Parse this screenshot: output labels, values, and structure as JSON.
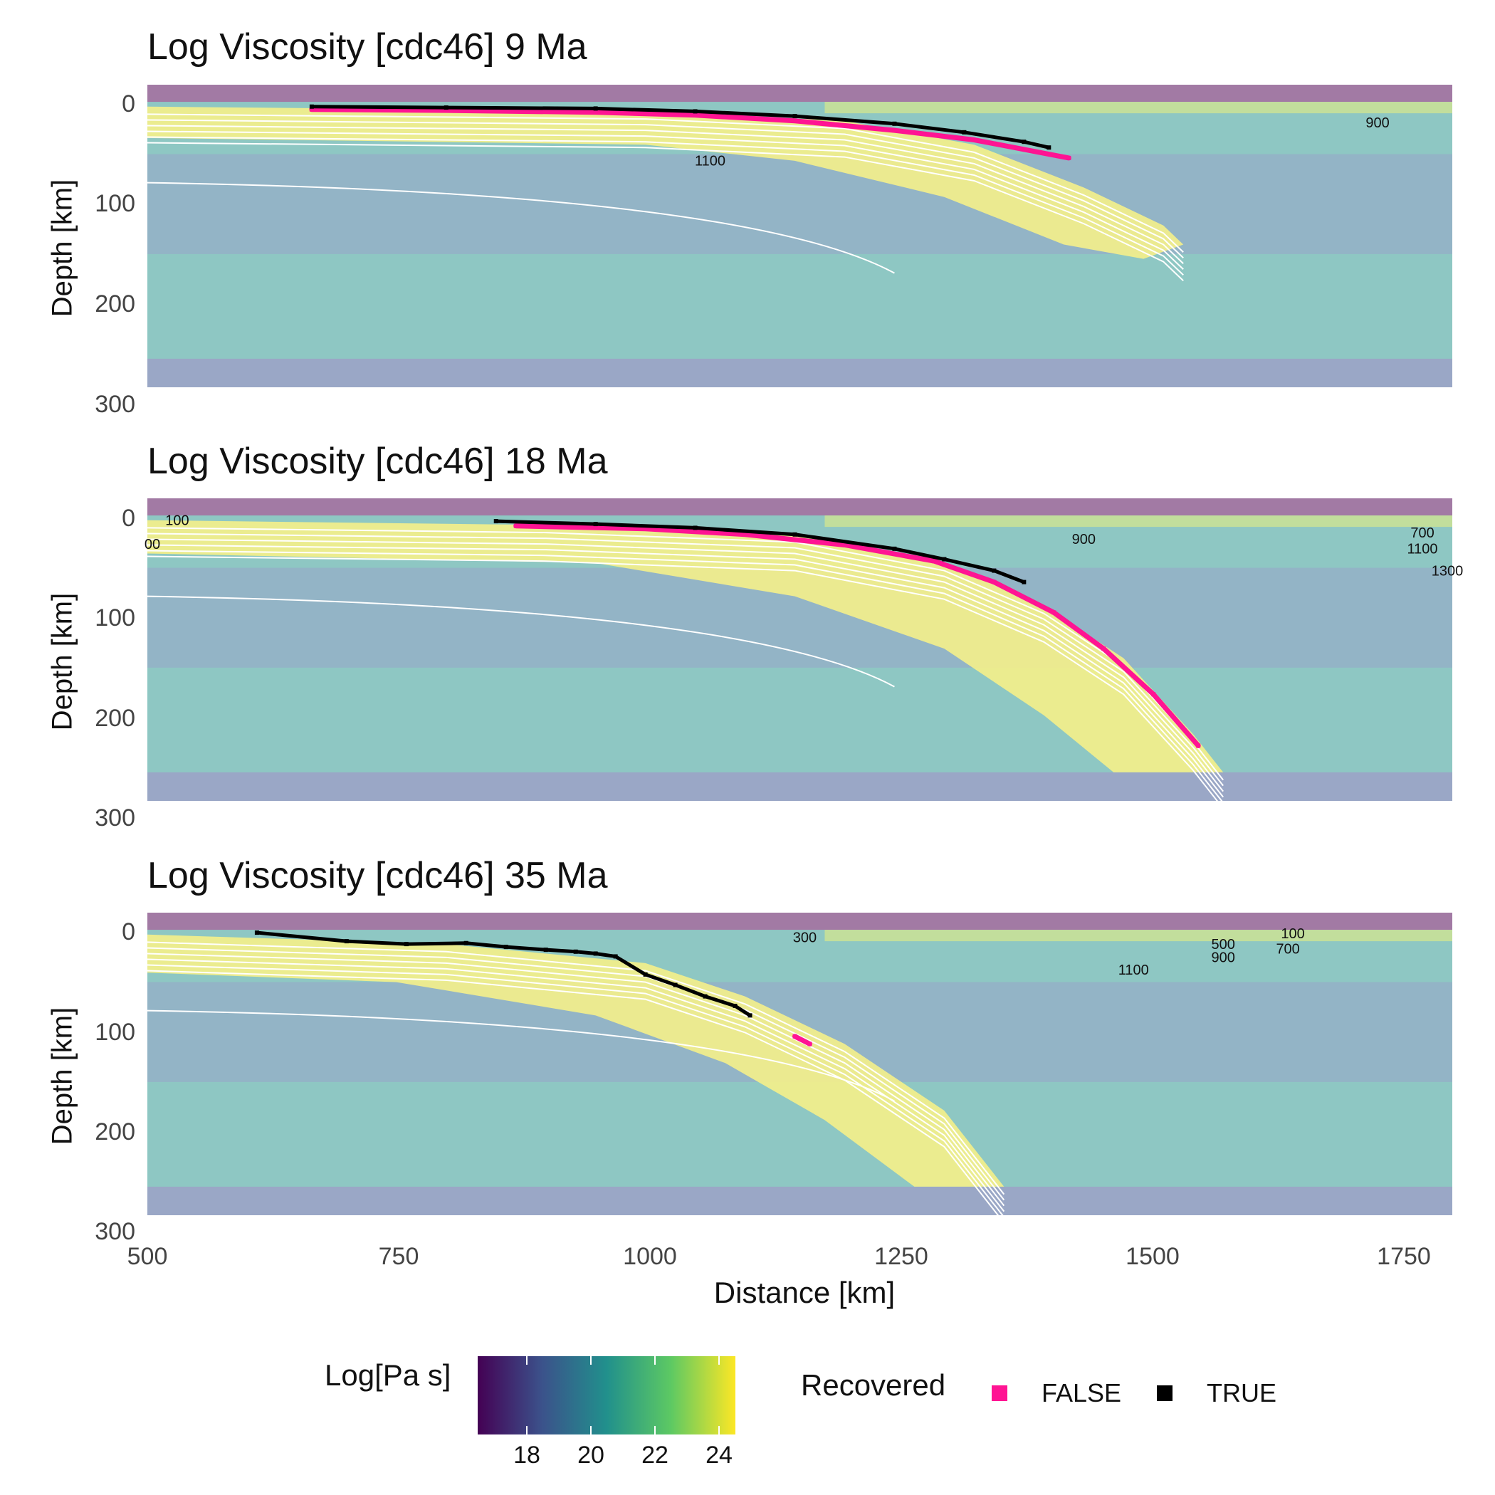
{
  "chart_data": [
    {
      "type": "heatmap",
      "title": "Log Viscosity [cdc46] 9 Ma",
      "xlabel": "",
      "ylabel": "Depth [km]",
      "xlim": [
        500,
        1810
      ],
      "ylim": [
        300,
        -18
      ],
      "yticks": [
        "0",
        "100",
        "200",
        "300"
      ],
      "xticks": [],
      "contour_labels": [
        {
          "text": "1100",
          "x": 1065,
          "y": 67
        },
        {
          "text": "900",
          "x": 1735,
          "y": 27
        }
      ],
      "recovered": {
        "FALSE": [
          [
            665,
            8
          ],
          [
            800,
            9
          ],
          [
            950,
            11
          ],
          [
            1050,
            14
          ],
          [
            1150,
            20
          ],
          [
            1250,
            30
          ],
          [
            1330,
            40
          ],
          [
            1390,
            52
          ],
          [
            1425,
            59
          ]
        ],
        "TRUE": [
          [
            665,
            5
          ],
          [
            800,
            6
          ],
          [
            950,
            7
          ],
          [
            1050,
            10
          ],
          [
            1150,
            15
          ],
          [
            1250,
            23
          ],
          [
            1320,
            32
          ],
          [
            1380,
            42
          ],
          [
            1405,
            48
          ]
        ]
      }
    },
    {
      "type": "heatmap",
      "title": "Log Viscosity [cdc46] 18 Ma",
      "xlabel": "",
      "ylabel": "Depth [km]",
      "xlim": [
        500,
        1810
      ],
      "ylim": [
        300,
        -18
      ],
      "yticks": [
        "0",
        "100",
        "200",
        "300"
      ],
      "xticks": [],
      "contour_labels": [
        {
          "text": "100",
          "x": 530,
          "y": 10
        },
        {
          "text": "00",
          "x": 505,
          "y": 35
        },
        {
          "text": "900",
          "x": 1440,
          "y": 30
        },
        {
          "text": "700",
          "x": 1780,
          "y": 23
        },
        {
          "text": "1100",
          "x": 1780,
          "y": 40
        },
        {
          "text": "1300",
          "x": 1805,
          "y": 63
        }
      ],
      "recovered": {
        "FALSE": [
          [
            870,
            11
          ],
          [
            1000,
            14
          ],
          [
            1100,
            20
          ],
          [
            1200,
            31
          ],
          [
            1290,
            48
          ],
          [
            1350,
            70
          ],
          [
            1410,
            102
          ],
          [
            1460,
            140
          ],
          [
            1510,
            188
          ],
          [
            1555,
            242
          ]
        ],
        "TRUE": [
          [
            850,
            6
          ],
          [
            950,
            9
          ],
          [
            1050,
            13
          ],
          [
            1150,
            20
          ],
          [
            1250,
            35
          ],
          [
            1300,
            46
          ],
          [
            1350,
            58
          ],
          [
            1380,
            70
          ]
        ]
      }
    },
    {
      "type": "heatmap",
      "title": "Log Viscosity [cdc46] 35 Ma",
      "xlabel": "Distance [km]",
      "ylabel": "Depth [km]",
      "xlim": [
        500,
        1810
      ],
      "ylim": [
        300,
        -18
      ],
      "yticks": [
        "0",
        "100",
        "200",
        "300"
      ],
      "xticks": [
        "500",
        "750",
        "1000",
        "1250",
        "1500",
        "1750"
      ],
      "contour_labels": [
        {
          "text": "300",
          "x": 1160,
          "y": 13
        },
        {
          "text": "500",
          "x": 1580,
          "y": 20
        },
        {
          "text": "100",
          "x": 1650,
          "y": 9
        },
        {
          "text": "700",
          "x": 1645,
          "y": 25
        },
        {
          "text": "900",
          "x": 1580,
          "y": 34
        },
        {
          "text": "1100",
          "x": 1490,
          "y": 47
        }
      ],
      "recovered": {
        "FALSE": [
          [
            1150,
            112
          ],
          [
            1165,
            120
          ]
        ],
        "TRUE": [
          [
            610,
            3
          ],
          [
            700,
            12
          ],
          [
            760,
            15
          ],
          [
            820,
            14
          ],
          [
            860,
            18
          ],
          [
            900,
            21
          ],
          [
            930,
            23
          ],
          [
            950,
            25
          ],
          [
            970,
            28
          ],
          [
            1000,
            47
          ],
          [
            1030,
            58
          ],
          [
            1060,
            70
          ],
          [
            1090,
            80
          ],
          [
            1105,
            90
          ]
        ]
      }
    }
  ],
  "legend": {
    "colorbar_title": "Log[Pa s]",
    "colorbar_ticks": [
      "18",
      "20",
      "22",
      "24"
    ],
    "colorbar_range": [
      16.5,
      24.6
    ],
    "colors": [
      "#440154",
      "#3b528b",
      "#21908c",
      "#5dc963",
      "#fde725"
    ],
    "recovered_title": "Recovered",
    "recovered_items": [
      {
        "label": "FALSE",
        "color": "#ff1493"
      },
      {
        "label": "TRUE",
        "color": "#000000"
      }
    ]
  }
}
